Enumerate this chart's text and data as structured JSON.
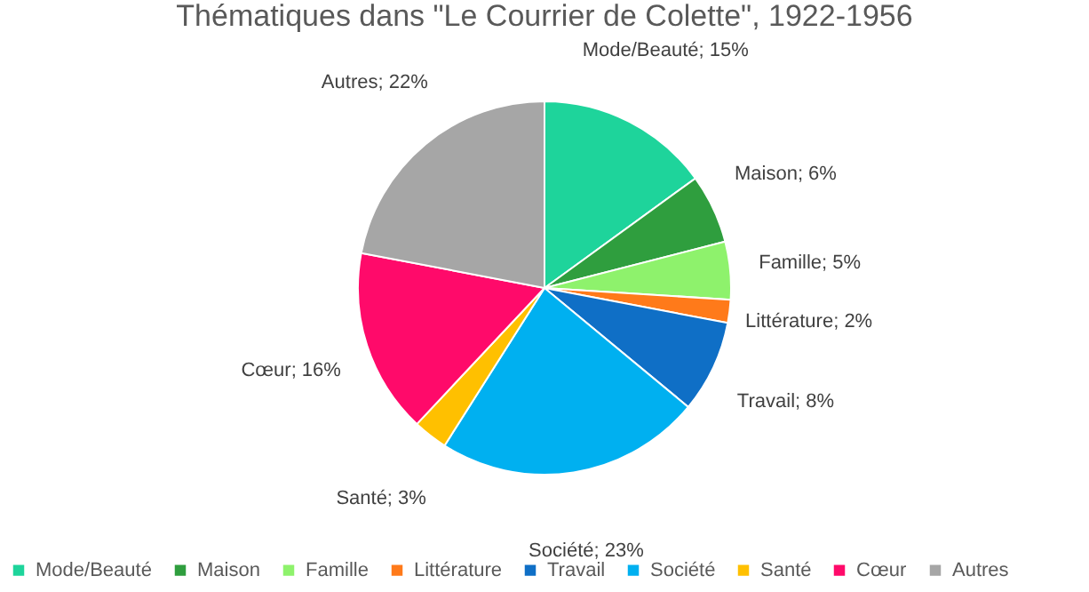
{
  "chart_data": {
    "type": "pie",
    "title": "Thématiques dans \"Le Courrier de Colette\", 1922-1956",
    "categories": [
      "Mode/Beauté",
      "Maison",
      "Famille",
      "Littérature",
      "Travail",
      "Société",
      "Santé",
      "Cœur",
      "Autres"
    ],
    "values": [
      15,
      6,
      5,
      2,
      8,
      23,
      3,
      16,
      22
    ],
    "colors": [
      "#1ed49b",
      "#2f9e3e",
      "#8ef26c",
      "#ff7a1a",
      "#0f6fc6",
      "#00b0f0",
      "#ffc000",
      "#ff0a6a",
      "#a6a6a6"
    ],
    "value_labels": [
      "Mode/Beauté; 15%",
      "Maison; 6%",
      "Famille; 5%",
      "Littérature; 2%",
      "Travail; 8%",
      "Société; 23%",
      "Santé; 3%",
      "Cœur; 16%",
      "Autres; 22%"
    ],
    "legend": "bottom"
  }
}
